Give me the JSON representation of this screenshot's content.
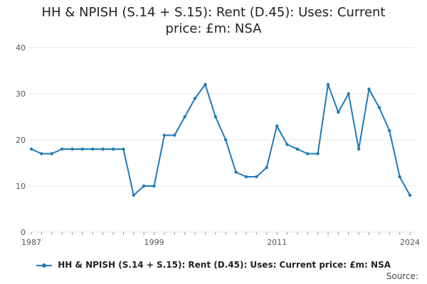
{
  "title_lines": [
    "HH & NPISH (S.14 + S.15): Rent (D.45): Uses: Current",
    "price: £m: NSA"
  ],
  "source_label": "Source:",
  "colors": {
    "series": "#1f7ab8",
    "grid": "#e6e6e6",
    "axis": "#999999"
  },
  "chart_data": {
    "type": "line",
    "title": "HH & NPISH (S.14 + S.15): Rent (D.45): Uses: Current price: £m: NSA",
    "xlabel": "",
    "ylabel": "",
    "xlim": [
      1987,
      2024
    ],
    "ylim": [
      0,
      40
    ],
    "yticks": [
      0,
      10,
      20,
      30,
      40
    ],
    "xticks": [
      1987,
      1999,
      2011,
      2024
    ],
    "grid": true,
    "legend": "bottom",
    "series": [
      {
        "name": "HH & NPISH (S.14 + S.15): Rent (D.45): Uses: Current price: £m: NSA",
        "x": [
          1987,
          1988,
          1989,
          1990,
          1991,
          1992,
          1993,
          1994,
          1995,
          1996,
          1997,
          1998,
          1999,
          2000,
          2001,
          2002,
          2003,
          2004,
          2005,
          2006,
          2007,
          2008,
          2009,
          2010,
          2011,
          2012,
          2013,
          2014,
          2015,
          2016,
          2017,
          2018,
          2019,
          2020,
          2021,
          2022,
          2023,
          2024
        ],
        "values": [
          18,
          17,
          17,
          18,
          18,
          18,
          18,
          18,
          18,
          18,
          8,
          10,
          10,
          21,
          21,
          25,
          29,
          32,
          25,
          20,
          13,
          12,
          12,
          14,
          23,
          19,
          18,
          17,
          17,
          32,
          26,
          30,
          18,
          31,
          27,
          22,
          12,
          8
        ]
      }
    ]
  }
}
